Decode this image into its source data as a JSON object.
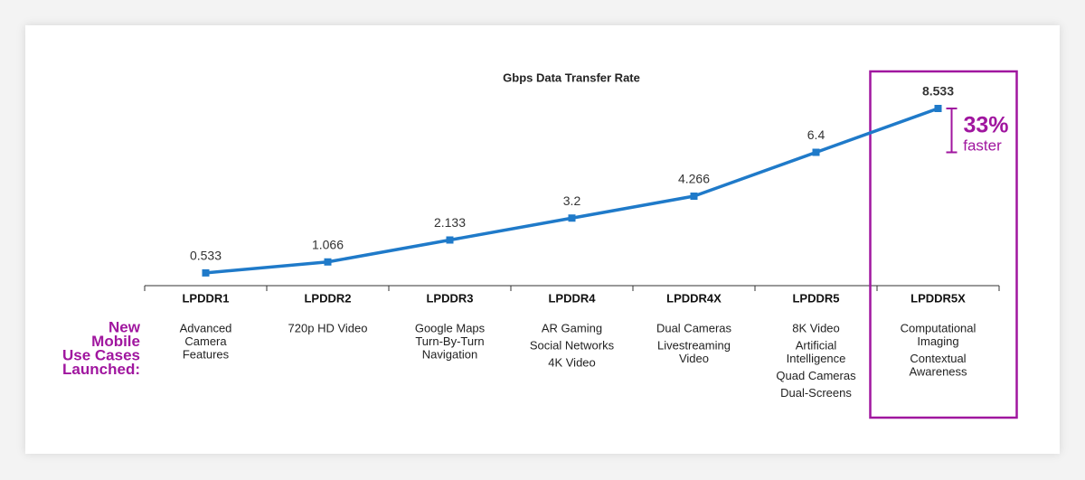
{
  "chart_data": {
    "type": "line",
    "title": "Gbps Data Transfer Rate",
    "categories": [
      "LPDDR1",
      "LPDDR2",
      "LPDDR3",
      "LPDDR4",
      "LPDDR4X",
      "LPDDR5",
      "LPDDR5X"
    ],
    "series": [
      {
        "name": "Gbps Data Transfer Rate",
        "color": "#1f7ac9",
        "values": [
          0.533,
          1.066,
          2.133,
          3.2,
          4.266,
          6.4,
          8.533
        ]
      }
    ],
    "use_cases_label": [
      "New",
      "Mobile",
      "Use Cases",
      "Launched:"
    ],
    "use_cases": [
      [
        [
          "Advanced",
          "Camera",
          "Features"
        ]
      ],
      [
        [
          "720p HD Video"
        ]
      ],
      [
        [
          "Google Maps",
          "Turn-By-Turn",
          "Navigation"
        ]
      ],
      [
        [
          "AR Gaming"
        ],
        [
          "Social Networks"
        ],
        [
          "4K Video"
        ]
      ],
      [
        [
          "Dual Cameras"
        ],
        [
          "Livestreaming",
          "Video"
        ]
      ],
      [
        [
          "8K Video"
        ],
        [
          "Artificial",
          "Intelligence"
        ],
        [
          "Quad Cameras"
        ],
        [
          "Dual-Screens"
        ]
      ],
      [
        [
          "Computational",
          "Imaging"
        ],
        [
          "Contextual",
          "Awareness"
        ]
      ]
    ],
    "highlight_color": "#a0169f",
    "annotation": {
      "percent": "33%",
      "text": "faster"
    }
  }
}
